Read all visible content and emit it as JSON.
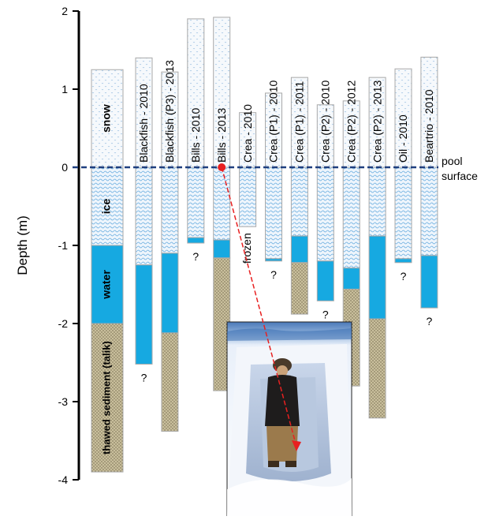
{
  "chart_data": {
    "type": "bar",
    "subtype": "stacked-depth-profile",
    "ylabel": "Depth (m)",
    "ylim": [
      -4,
      2
    ],
    "yticks": [
      -4,
      -3,
      -2,
      -1,
      0,
      1,
      2
    ],
    "grid": false,
    "surface_label_line1": "pool",
    "surface_label_line2": "surface",
    "layer_colors": {
      "snow": "#f4f7fb",
      "ice": "#eaf3fb",
      "water": "#16a9e1",
      "sediment": "#b7ab86",
      "outline": "#a9a9a9",
      "surface_line": "#1f3f7f"
    },
    "legend_column": {
      "snow_top": 1.25,
      "ice_bottom": -1.0,
      "water_bottom": -2.0,
      "sediment_bottom": -3.9,
      "labels": {
        "snow": "snow",
        "ice": "ice",
        "water": "water",
        "sediment": "thawed sediment (talik)"
      }
    },
    "profiles": [
      {
        "label": "Blackfish - 2010",
        "snow_top": 1.4,
        "ice_bottom": -1.25,
        "water_bottom": -2.52,
        "sediment_bottom": null,
        "note": "?"
      },
      {
        "label": "Blackfish (P3) - 2013",
        "snow_top": 1.22,
        "ice_bottom": -1.1,
        "water_bottom": -2.12,
        "sediment_bottom": -3.38,
        "note": ""
      },
      {
        "label": "Bills - 2010",
        "snow_top": 1.9,
        "ice_bottom": -0.9,
        "water_bottom": -0.97,
        "sediment_bottom": null,
        "note": "?"
      },
      {
        "label": "Bills - 2013",
        "snow_top": 1.92,
        "ice_bottom": -0.93,
        "water_bottom": -1.16,
        "sediment_bottom": -2.86,
        "note": ""
      },
      {
        "label": "Crea - 2010",
        "snow_top": 0.7,
        "ice_bottom": -0.76,
        "water_bottom": null,
        "sediment_bottom": null,
        "note": "frozen"
      },
      {
        "label": "Crea (P1) - 2010",
        "snow_top": 0.95,
        "ice_bottom": -1.17,
        "water_bottom": -1.2,
        "sediment_bottom": null,
        "note": "?"
      },
      {
        "label": "Crea (P1) - 2011",
        "snow_top": 1.15,
        "ice_bottom": -0.88,
        "water_bottom": -1.22,
        "sediment_bottom": -1.88,
        "note": ""
      },
      {
        "label": "Crea (P2) - 2010",
        "snow_top": 0.8,
        "ice_bottom": -1.2,
        "water_bottom": -1.71,
        "sediment_bottom": null,
        "note": "?"
      },
      {
        "label": "Crea (P2) - 2012",
        "snow_top": 0.85,
        "ice_bottom": -1.29,
        "water_bottom": -1.56,
        "sediment_bottom": -2.8,
        "note": ""
      },
      {
        "label": "Crea (P2) - 2013",
        "snow_top": 1.15,
        "ice_bottom": -0.88,
        "water_bottom": -1.94,
        "sediment_bottom": -3.21,
        "note": ""
      },
      {
        "label": "Oil - 2010",
        "snow_top": 1.26,
        "ice_bottom": -1.17,
        "water_bottom": -1.22,
        "sediment_bottom": null,
        "note": "?"
      },
      {
        "label": "Beartrio - 2010",
        "snow_top": 1.41,
        "ice_bottom": -1.13,
        "water_bottom": -1.8,
        "sediment_bottom": null,
        "note": "?"
      }
    ],
    "annotation": {
      "marker_profile": "Bills - 2013",
      "marker_depth": 0,
      "marker_color": "#e82020",
      "inset_photo": "snow-pit-photo"
    }
  }
}
